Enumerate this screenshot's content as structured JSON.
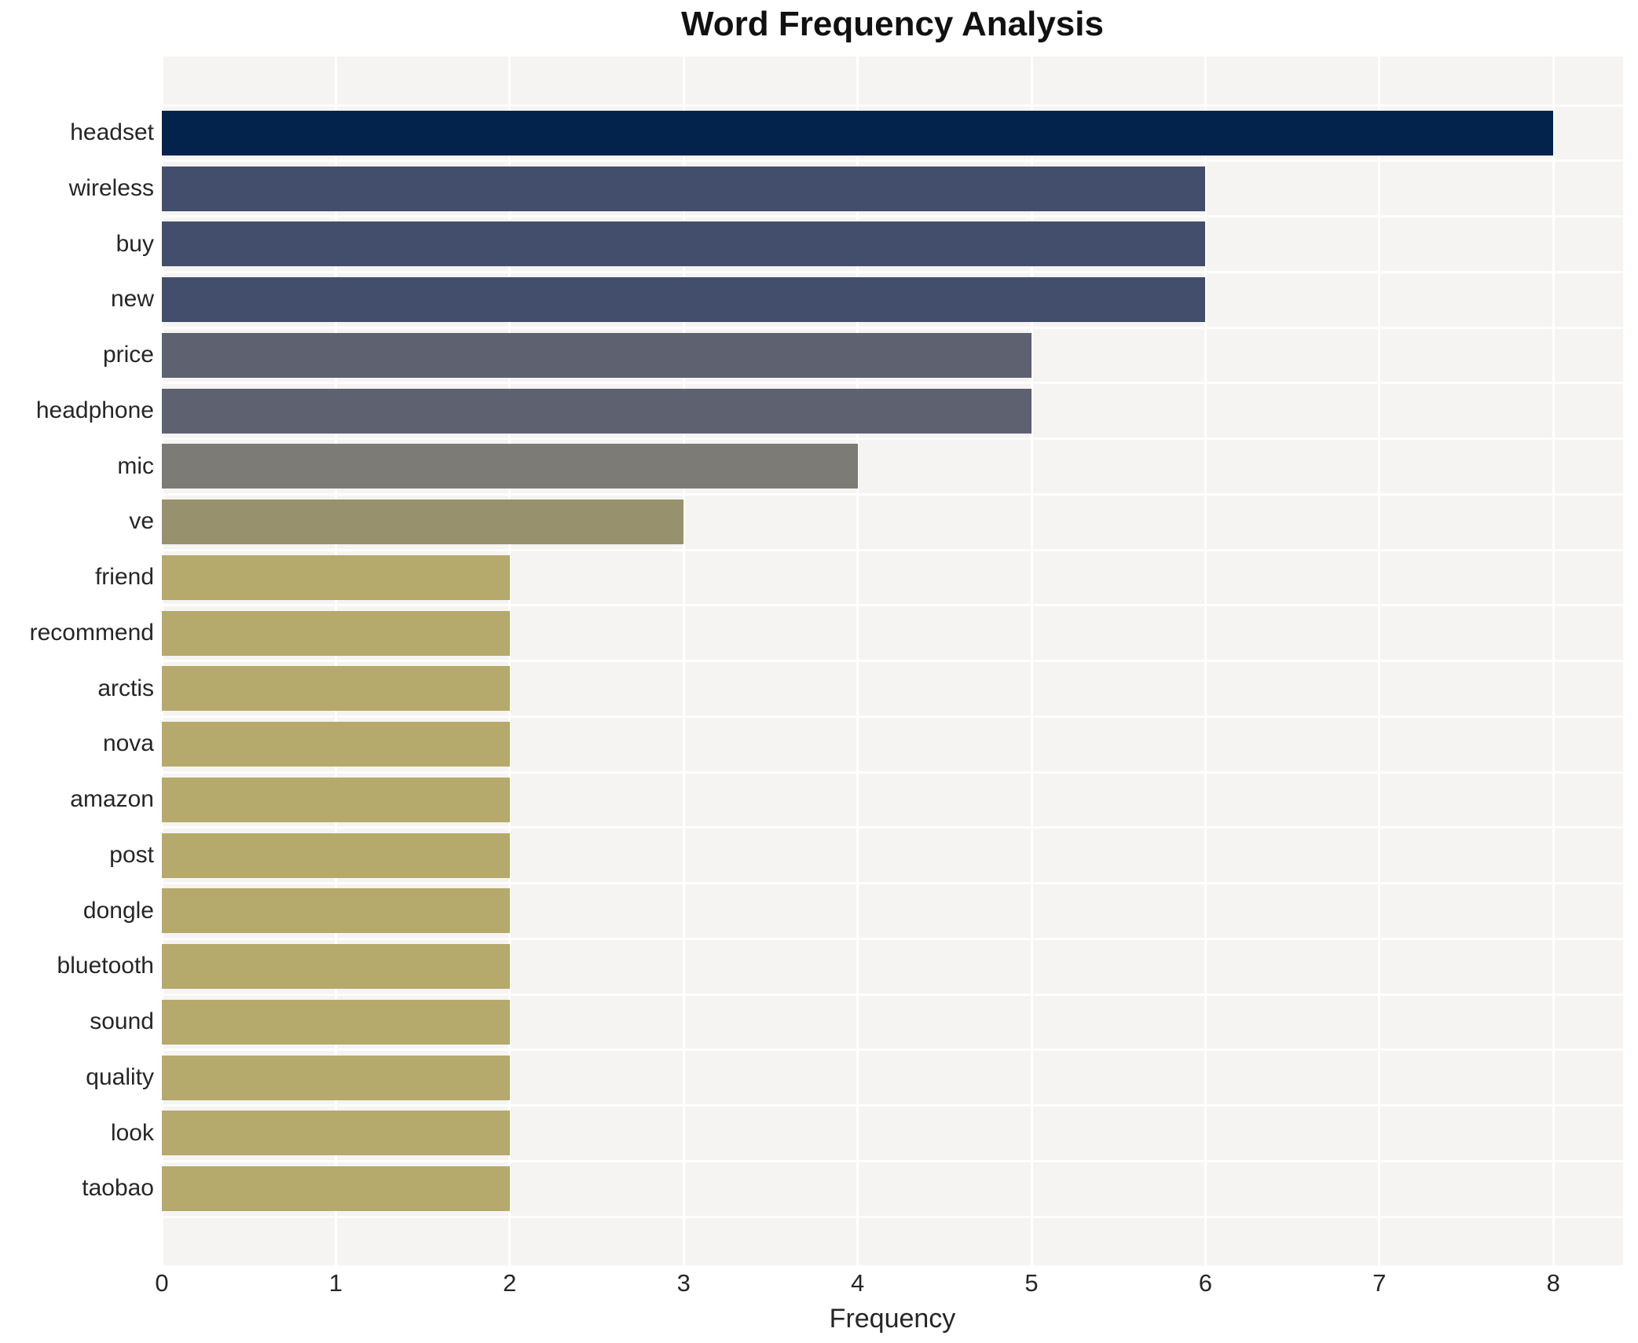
{
  "title": "Word Frequency Analysis",
  "chart_data": {
    "type": "bar",
    "orientation": "horizontal",
    "title": "Word Frequency Analysis",
    "xlabel": "Frequency",
    "ylabel": "",
    "categories": [
      "headset",
      "wireless",
      "buy",
      "new",
      "price",
      "headphone",
      "mic",
      "ve",
      "friend",
      "recommend",
      "arctis",
      "nova",
      "amazon",
      "post",
      "dongle",
      "bluetooth",
      "sound",
      "quality",
      "look",
      "taobao"
    ],
    "values": [
      8,
      6,
      6,
      6,
      5,
      5,
      4,
      3,
      2,
      2,
      2,
      2,
      2,
      2,
      2,
      2,
      2,
      2,
      2,
      2
    ],
    "bar_colors": [
      "#04234c",
      "#434e6c",
      "#434e6c",
      "#434e6c",
      "#5d6170",
      "#5d6170",
      "#7c7b75",
      "#97916e",
      "#b5aa6b",
      "#b5aa6b",
      "#b5aa6b",
      "#b5aa6b",
      "#b5aa6b",
      "#b5aa6b",
      "#b5aa6b",
      "#b5aa6b",
      "#b5aa6b",
      "#b5aa6b",
      "#b5aa6b",
      "#b5aa6b"
    ],
    "xticks": [
      0,
      1,
      2,
      3,
      4,
      5,
      6,
      7,
      8
    ],
    "xlim": [
      0,
      8.4
    ],
    "grid": "white gridlines on light gray plot background",
    "plot_background": "#f5f4f2",
    "legend": "none"
  }
}
